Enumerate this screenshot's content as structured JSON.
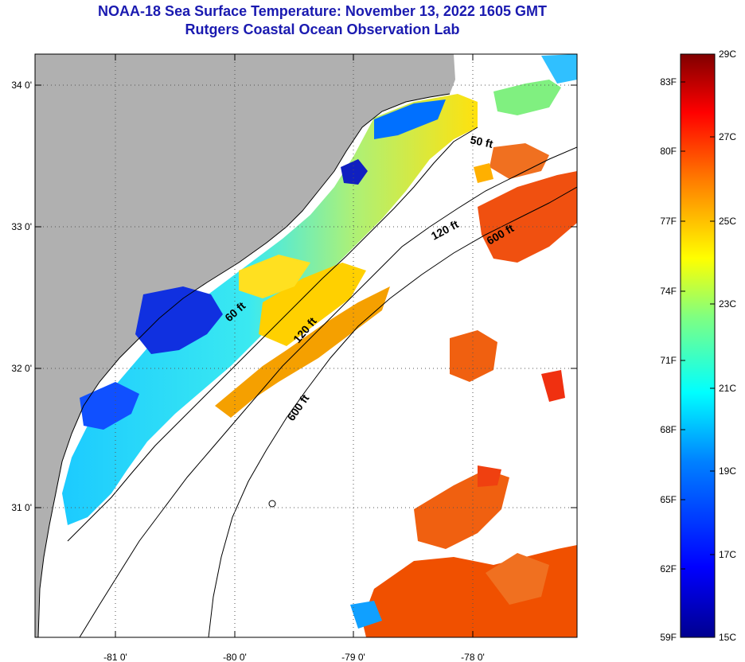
{
  "title": {
    "line1": "NOAA-18 Sea Surface Temperature:  November 13, 2022 1605 GMT",
    "line2": "Rutgers Coastal Ocean Observation Lab"
  },
  "map": {
    "lat_labels": [
      "34 0'",
      "33 0'",
      "32 0'",
      "31 0'"
    ],
    "lon_labels": [
      "-81 0'",
      "-80 0'",
      "-79 0'",
      "-78 0'"
    ],
    "contour_labels": {
      "c50_top": "50 ft",
      "c120_top": "120 ft",
      "c600_top": "600 ft",
      "c60_mid": "60 ft",
      "c120_mid": "120 ft",
      "c600_mid": "600 ft"
    },
    "colors": {
      "land": "#b0b0b0",
      "ocean_nodata": "#ffffff"
    }
  },
  "colorbar": {
    "fahrenheit": [
      "83F",
      "80F",
      "77F",
      "74F",
      "71F",
      "68F",
      "65F",
      "62F",
      "59F"
    ],
    "celsius": [
      "29C",
      "27C",
      "25C",
      "23C",
      "21C",
      "19C",
      "17C",
      "15C"
    ],
    "stops": [
      "#00008f",
      "#0000ff",
      "#0080ff",
      "#00ffff",
      "#80ff80",
      "#ffff00",
      "#ff8000",
      "#ff0000",
      "#800000"
    ]
  }
}
